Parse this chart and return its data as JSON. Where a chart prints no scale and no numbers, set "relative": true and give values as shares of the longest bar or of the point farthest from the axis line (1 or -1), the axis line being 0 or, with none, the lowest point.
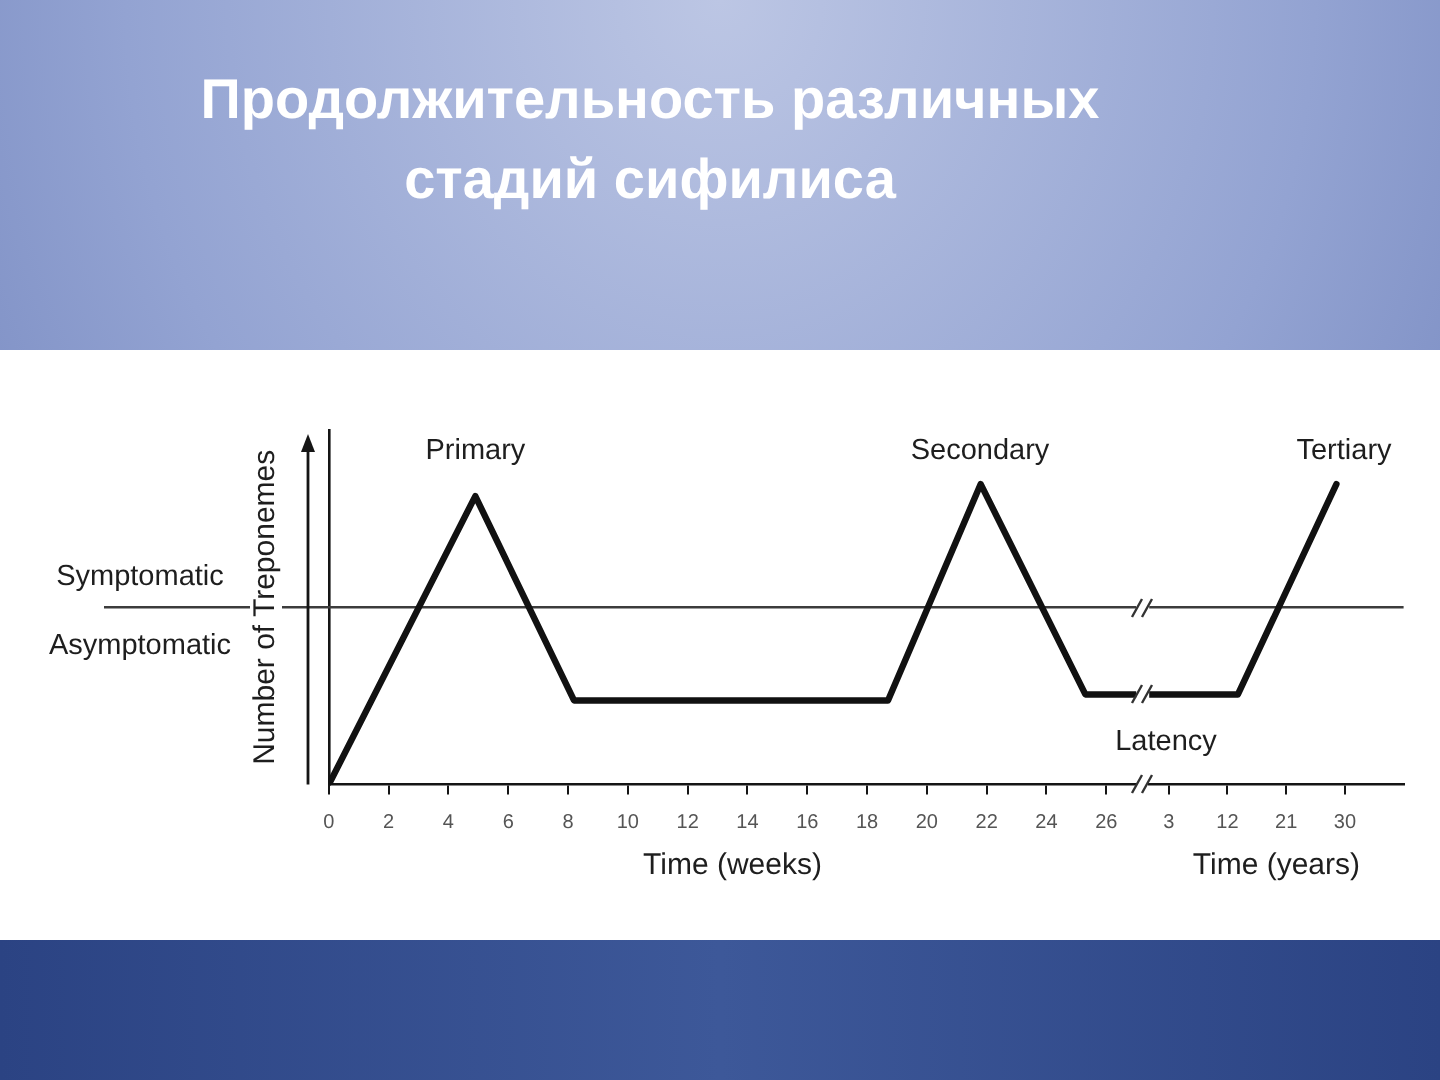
{
  "chart_data": [
    {
      "type": "line",
      "title": "Продолжительность различных стадий сифилиса",
      "xlabel": "Time (weeks)",
      "ylabel": "Number of Treponemes",
      "relative": true,
      "x": [
        0,
        4.9,
        8.2,
        18.7,
        21.8,
        25.3,
        27
      ],
      "values": [
        0,
        0.96,
        0.28,
        0.28,
        1,
        0.3,
        0.3
      ],
      "color": "#111111",
      "xlim": [
        0,
        27
      ],
      "xticks": [
        0,
        2,
        4,
        6,
        8,
        10,
        12,
        14,
        16,
        18,
        20,
        22,
        24,
        26
      ],
      "ref_lines": [
        {
          "axis": "y",
          "value": 0.59
        }
      ],
      "annotations": [
        "Primary",
        "Secondary",
        "Symptomatic",
        "Asymptomatic"
      ]
    },
    {
      "type": "line",
      "xlabel": "Time (years)",
      "relative": true,
      "x": [
        0,
        13.6,
        28.7
      ],
      "values": [
        0.3,
        0.3,
        1
      ],
      "color": "#111111",
      "xlim": [
        0,
        39
      ],
      "xticks": [
        3,
        12,
        21,
        30
      ],
      "ref_lines": [
        {
          "axis": "y",
          "value": 0.59
        }
      ],
      "annotations": [
        "Latency",
        "Tertiary"
      ]
    }
  ]
}
